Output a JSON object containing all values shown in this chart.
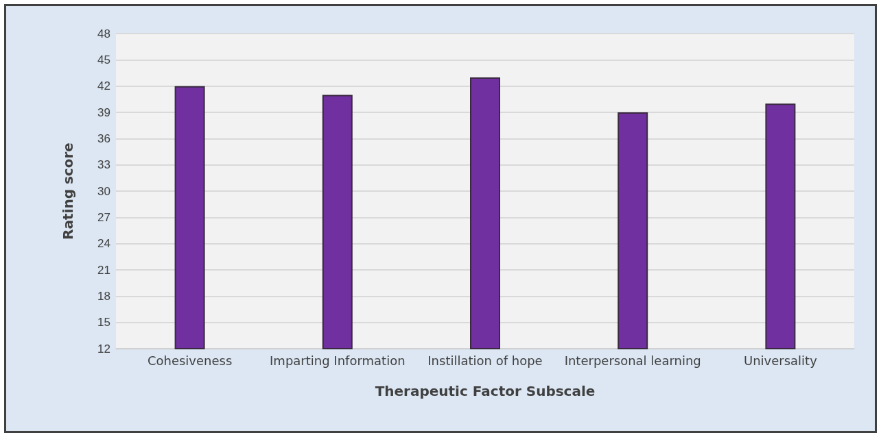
{
  "chart_data": {
    "type": "bar",
    "xlabel": "Therapeutic Factor Subscale",
    "ylabel": "Rating score",
    "categories": [
      "Cohesiveness",
      "Imparting Information",
      "Instillation of hope",
      "Interpersonal learning",
      "Universality"
    ],
    "values": [
      42,
      41,
      43,
      39,
      40
    ],
    "color": "#7030a0",
    "ylim": [
      12,
      48
    ],
    "yticks": [
      12,
      15,
      18,
      21,
      24,
      27,
      30,
      33,
      36,
      39,
      42,
      45,
      48
    ],
    "grid": "y"
  }
}
